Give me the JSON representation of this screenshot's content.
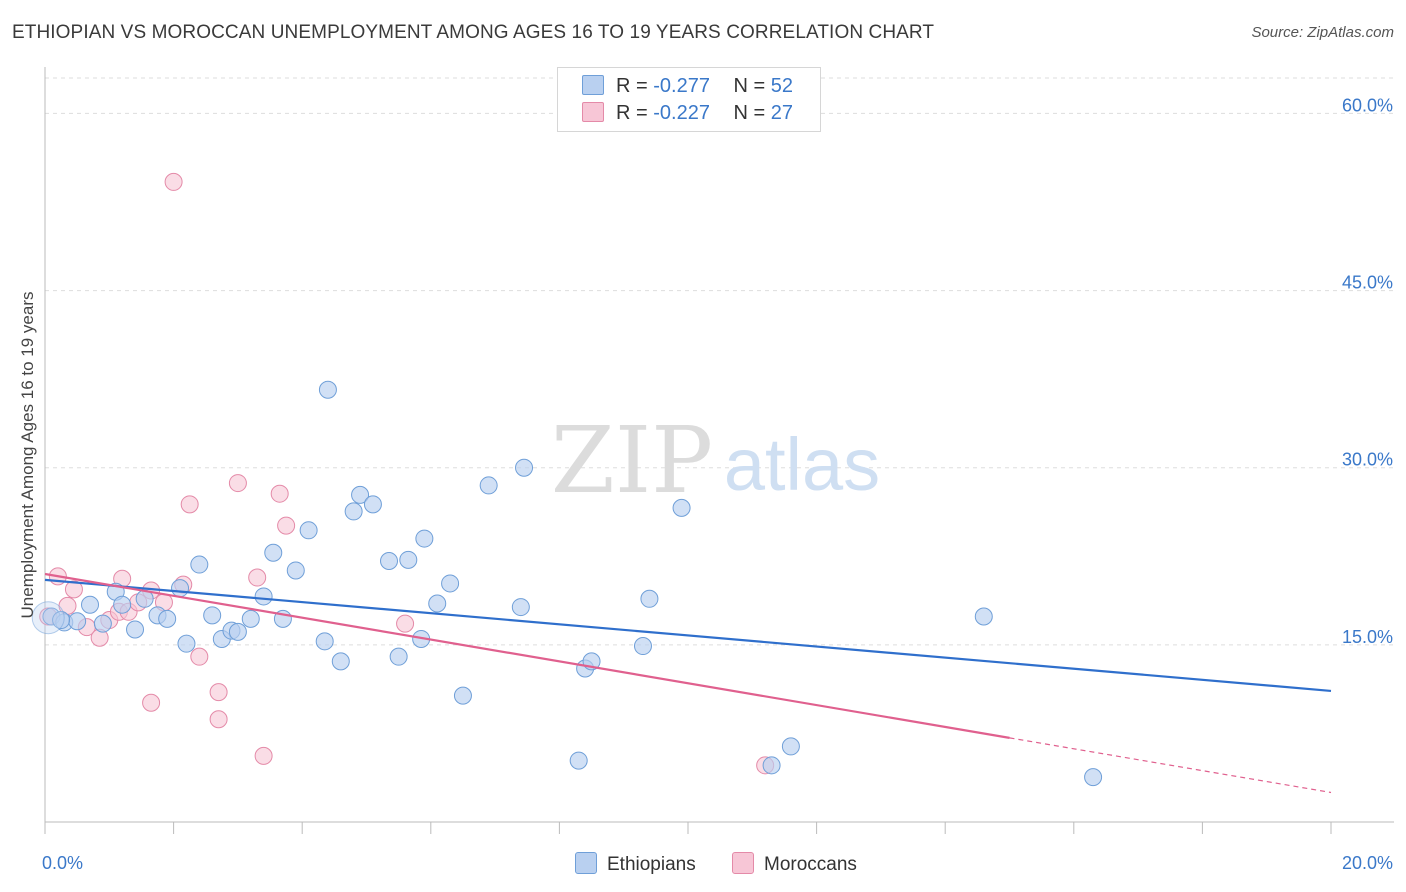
{
  "header": {
    "title": "ETHIOPIAN VS MOROCCAN UNEMPLOYMENT AMONG AGES 16 TO 19 YEARS CORRELATION CHART",
    "source": "Source: ZipAtlas.com"
  },
  "watermark": {
    "zip": "ZIP",
    "atlas": "atlas"
  },
  "legend": {
    "ethiopians": {
      "r_label": "R = ",
      "r_value": "-0.277",
      "n_label": "N = ",
      "n_value": "52"
    },
    "moroccans": {
      "r_label": "R = ",
      "r_value": "-0.227",
      "n_label": "N = ",
      "n_value": "27"
    }
  },
  "bottom_legend": {
    "ethiopians": "Ethiopians",
    "moroccans": "Moroccans"
  },
  "colors": {
    "ethiopians_fill": "#b9d0f0",
    "ethiopians_stroke": "#6f9fd8",
    "ethiopians_line": "#2f6fcc",
    "moroccans_fill": "#f7c6d6",
    "moroccans_stroke": "#e48aa8",
    "moroccans_line": "#e0608e",
    "tick_label": "#3a78c9",
    "grid": "#dddddd"
  },
  "chart_data": {
    "type": "scatter",
    "title": "ETHIOPIAN VS MOROCCAN UNEMPLOYMENT AMONG AGES 16 TO 19 YEARS CORRELATION CHART",
    "xlabel": "",
    "ylabel": "Unemployment Among Ages 16 to 19 years",
    "xlim": [
      0,
      20
    ],
    "ylim": [
      0,
      63
    ],
    "x_tick_labels": [
      "0.0%",
      "20.0%"
    ],
    "y_ticks": [
      15,
      30,
      45,
      60
    ],
    "y_tick_labels": [
      "15.0%",
      "30.0%",
      "45.0%",
      "60.0%"
    ],
    "grid": true,
    "legend_position": "top-center",
    "series": [
      {
        "name": "Ethiopians",
        "r": -0.277,
        "n": 52,
        "trend": {
          "x": [
            0,
            20
          ],
          "y": [
            20.5,
            11.1
          ],
          "dashed_from": null
        },
        "points": [
          [
            0.1,
            17.4
          ],
          [
            0.3,
            16.9
          ],
          [
            0.5,
            17.0
          ],
          [
            0.7,
            18.4
          ],
          [
            0.9,
            16.8
          ],
          [
            1.1,
            19.5
          ],
          [
            1.2,
            18.4
          ],
          [
            1.4,
            16.3
          ],
          [
            1.55,
            18.9
          ],
          [
            1.75,
            17.5
          ],
          [
            1.9,
            17.2
          ],
          [
            2.1,
            19.8
          ],
          [
            2.2,
            15.1
          ],
          [
            2.4,
            21.8
          ],
          [
            2.6,
            17.5
          ],
          [
            2.75,
            15.5
          ],
          [
            2.9,
            16.2
          ],
          [
            3.0,
            16.1
          ],
          [
            3.2,
            17.2
          ],
          [
            3.4,
            19.1
          ],
          [
            3.55,
            22.8
          ],
          [
            3.7,
            17.2
          ],
          [
            3.9,
            21.3
          ],
          [
            4.1,
            24.7
          ],
          [
            4.35,
            15.3
          ],
          [
            4.4,
            36.6
          ],
          [
            4.6,
            13.6
          ],
          [
            4.8,
            26.3
          ],
          [
            4.9,
            27.7
          ],
          [
            5.1,
            26.9
          ],
          [
            5.35,
            22.1
          ],
          [
            5.5,
            14.0
          ],
          [
            5.65,
            22.2
          ],
          [
            5.85,
            15.5
          ],
          [
            5.9,
            24.0
          ],
          [
            6.1,
            18.5
          ],
          [
            6.3,
            20.2
          ],
          [
            6.5,
            10.7
          ],
          [
            6.9,
            28.5
          ],
          [
            7.4,
            18.2
          ],
          [
            7.45,
            30.0
          ],
          [
            8.3,
            5.2
          ],
          [
            8.4,
            13.0
          ],
          [
            8.5,
            13.6
          ],
          [
            9.3,
            14.9
          ],
          [
            9.4,
            18.9
          ],
          [
            9.9,
            26.6
          ],
          [
            11.3,
            4.8
          ],
          [
            11.6,
            6.4
          ],
          [
            14.6,
            17.4
          ],
          [
            16.3,
            3.8
          ],
          [
            0.25,
            17.1
          ]
        ]
      },
      {
        "name": "Moroccans",
        "r": -0.227,
        "n": 27,
        "trend": {
          "x": [
            0,
            20
          ],
          "y": [
            21.0,
            2.5
          ],
          "dashed_from": 15.0
        },
        "points": [
          [
            0.05,
            17.4
          ],
          [
            0.2,
            20.8
          ],
          [
            0.35,
            18.3
          ],
          [
            0.45,
            19.7
          ],
          [
            0.65,
            16.5
          ],
          [
            0.85,
            15.6
          ],
          [
            1.0,
            17.1
          ],
          [
            1.15,
            17.8
          ],
          [
            1.2,
            20.6
          ],
          [
            1.3,
            17.8
          ],
          [
            1.45,
            18.6
          ],
          [
            1.65,
            19.6
          ],
          [
            1.65,
            10.1
          ],
          [
            1.85,
            18.6
          ],
          [
            2.0,
            54.2
          ],
          [
            2.15,
            20.1
          ],
          [
            2.25,
            26.9
          ],
          [
            2.4,
            14.0
          ],
          [
            2.7,
            11.0
          ],
          [
            2.7,
            8.7
          ],
          [
            3.0,
            28.7
          ],
          [
            3.3,
            20.7
          ],
          [
            3.4,
            5.6
          ],
          [
            3.65,
            27.8
          ],
          [
            3.75,
            25.1
          ],
          [
            5.6,
            16.8
          ],
          [
            11.2,
            4.8
          ]
        ]
      }
    ]
  }
}
